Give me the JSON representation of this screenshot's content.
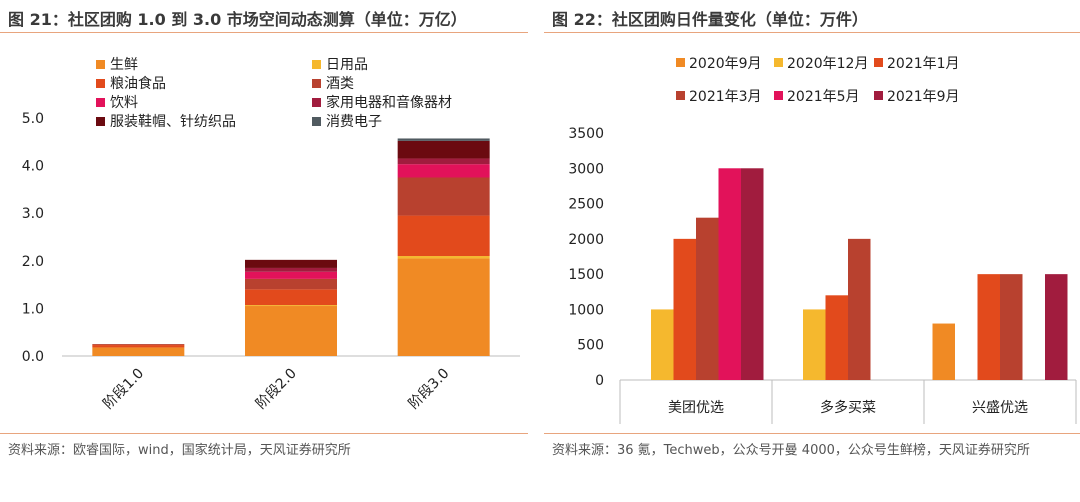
{
  "left": {
    "title": "图 21：社区团购 1.0 到 3.0 市场空间动态测算（单位：万亿）",
    "source": "资料来源：欧睿国际，wind，国家统计局，天风证券研究所"
  },
  "right": {
    "title": "图 22：社区团购日件量变化（单位：万件）",
    "source": "资料来源：36 氪，Techweb，公众号开曼 4000，公众号生鲜榜，天风证券研究所"
  },
  "chart_data": [
    {
      "type": "bar",
      "stacked": true,
      "categories": [
        "阶段1.0",
        "阶段2.0",
        "阶段3.0"
      ],
      "ylim": [
        0,
        5
      ],
      "yticks": [
        "0.0",
        "1.0",
        "2.0",
        "3.0",
        "4.0",
        "5.0"
      ],
      "legend_position": "top",
      "series": [
        {
          "name": "生鲜",
          "color": "#f08a24",
          "values": [
            0.18,
            1.05,
            2.05
          ]
        },
        {
          "name": "日用品",
          "color": "#f5b82e",
          "values": [
            0.0,
            0.02,
            0.05
          ]
        },
        {
          "name": "粮油食品",
          "color": "#e24a1c",
          "values": [
            0.05,
            0.33,
            0.85
          ]
        },
        {
          "name": "酒类",
          "color": "#b8412f",
          "values": [
            0.02,
            0.22,
            0.8
          ]
        },
        {
          "name": "饮料",
          "color": "#e2125a",
          "values": [
            0.0,
            0.15,
            0.28
          ]
        },
        {
          "name": "家用电器和音像器材",
          "color": "#a11c3e",
          "values": [
            0.0,
            0.08,
            0.12
          ]
        },
        {
          "name": "服装鞋帽、针纺织品",
          "color": "#6b0a10",
          "values": [
            0.0,
            0.17,
            0.37
          ]
        },
        {
          "name": "消费电子",
          "color": "#505a60",
          "values": [
            0.0,
            0.0,
            0.05
          ]
        }
      ]
    },
    {
      "type": "bar",
      "categories": [
        "美团优选",
        "多多买菜",
        "兴盛优选"
      ],
      "ylim": [
        0,
        3500
      ],
      "yticks": [
        "0",
        "500",
        "1000",
        "1500",
        "2000",
        "2500",
        "3000",
        "3500"
      ],
      "legend_position": "top",
      "series": [
        {
          "name": "2020年9月",
          "color": "#f08a24",
          "values": [
            null,
            null,
            800
          ]
        },
        {
          "name": "2020年12月",
          "color": "#f5b82e",
          "values": [
            1000,
            1000,
            null
          ]
        },
        {
          "name": "2021年1月",
          "color": "#e24a1c",
          "values": [
            2000,
            1200,
            1500
          ]
        },
        {
          "name": "2021年3月",
          "color": "#b8412f",
          "values": [
            2300,
            2000,
            1500
          ]
        },
        {
          "name": "2021年5月",
          "color": "#e2125a",
          "values": [
            3000,
            null,
            null
          ]
        },
        {
          "name": "2021年9月",
          "color": "#a11c3e",
          "values": [
            3000,
            null,
            1500
          ]
        }
      ]
    }
  ]
}
